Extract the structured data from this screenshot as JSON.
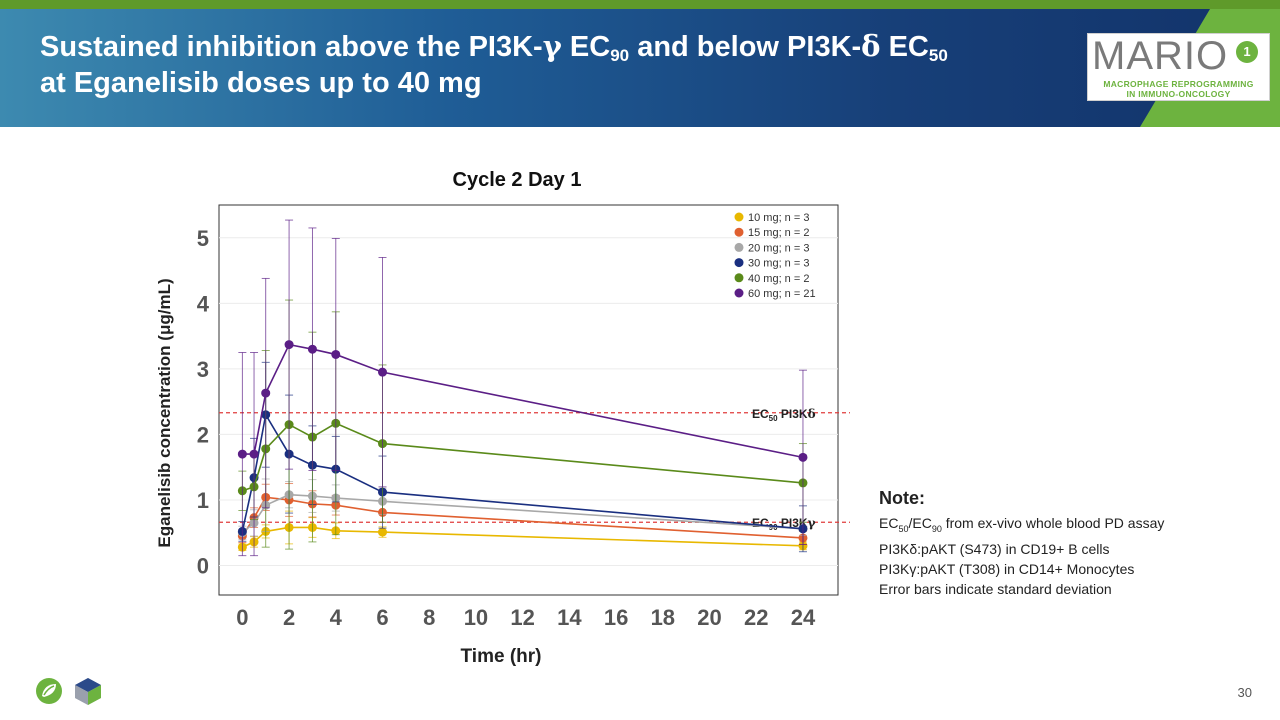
{
  "slide": {
    "title_line1_parts": [
      "Sustained inhibition above the PI3K-",
      "γ",
      " EC",
      "90",
      " and below PI3K-",
      "δ",
      " EC",
      "50"
    ],
    "title_line2": "at Eganelisib doses up to 40 mg",
    "page_number": "30"
  },
  "logo": {
    "word": "MARIO",
    "badge": "1",
    "subtitle1": "MACROPHAGE REPROGRAMMING",
    "subtitle2": "IN IMMUNO-ONCOLOGY"
  },
  "note": {
    "title": "Note:",
    "line1_parts": [
      "EC",
      "50",
      "/EC",
      "90",
      " from ex-vivo whole blood PD assay"
    ],
    "line2": "PI3Kδ:pAKT (S473) in CD19+ B cells",
    "line3": "PI3Kγ:pAKT (T308) in CD14+ Monocytes",
    "line4": "Error bars indicate standard deviation"
  },
  "colors": {
    "header_dark": "#12336a",
    "accent_green": "#6db33f",
    "threshold": "#e03c3c"
  },
  "chart_data": {
    "type": "line",
    "title": "Cycle 2 Day 1",
    "xlabel": "Time (hr)",
    "ylabel": "Eganelisib concentration (μg/mL)",
    "xlim": [
      -1,
      25.5
    ],
    "ylim": [
      -0.45,
      5.5
    ],
    "xticks": [
      0,
      2,
      4,
      6,
      8,
      10,
      12,
      14,
      16,
      18,
      20,
      22,
      24
    ],
    "yticks": [
      0,
      1,
      2,
      3,
      4,
      5
    ],
    "x": [
      0,
      0.5,
      1,
      2,
      3,
      4,
      6,
      24
    ],
    "series": [
      {
        "name": "10 mg; n = 3",
        "color": "#e8b800",
        "values": [
          0.28,
          0.36,
          0.52,
          0.58,
          0.58,
          0.53,
          0.51,
          0.3
        ],
        "sd": [
          0.05,
          0.08,
          0.1,
          0.25,
          0.15,
          0.12,
          0.08,
          0.06
        ]
      },
      {
        "name": "15 mg; n = 2",
        "color": "#e06030",
        "values": [
          0.45,
          0.73,
          1.04,
          1.0,
          0.94,
          0.92,
          0.81,
          0.42
        ],
        "sd": [
          0.1,
          0.15,
          0.2,
          0.25,
          0.2,
          0.15,
          0.15,
          0.1
        ]
      },
      {
        "name": "20 mg; n = 3",
        "color": "#a8a8a8",
        "values": [
          0.5,
          0.65,
          0.92,
          1.08,
          1.06,
          1.03,
          0.98,
          0.56
        ],
        "sd": [
          0.1,
          0.2,
          0.4,
          0.2,
          0.25,
          0.2,
          0.2,
          0.1
        ]
      },
      {
        "name": "30 mg; n = 3",
        "color": "#1a2f80",
        "values": [
          0.52,
          1.34,
          2.3,
          1.7,
          1.53,
          1.47,
          1.12,
          0.56
        ],
        "sd": [
          0.15,
          0.6,
          0.8,
          0.9,
          0.6,
          0.5,
          0.55,
          0.35
        ]
      },
      {
        "name": "40 mg; n = 2",
        "color": "#5a8a1a",
        "values": [
          1.14,
          1.2,
          1.78,
          2.15,
          1.96,
          2.17,
          1.86,
          1.26
        ],
        "sd": [
          0.3,
          0.5,
          1.5,
          1.9,
          1.6,
          1.7,
          1.2,
          0.6
        ]
      },
      {
        "name": "60 mg; n = 21",
        "color": "#5b1e86",
        "values": [
          1.7,
          1.7,
          2.63,
          3.37,
          3.3,
          3.22,
          2.95,
          1.65
        ],
        "sd": [
          1.55,
          1.55,
          1.75,
          1.9,
          1.85,
          1.77,
          1.75,
          1.33
        ]
      }
    ],
    "reference_lines": [
      {
        "y": 2.33,
        "label_parts": [
          "EC",
          "50",
          " PI3K",
          "δ"
        ]
      },
      {
        "y": 0.66,
        "label_parts": [
          "EC",
          "90",
          " PI3K",
          "γ"
        ]
      }
    ],
    "legend": "top-right"
  }
}
